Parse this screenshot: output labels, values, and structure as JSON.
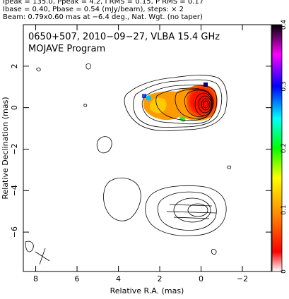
{
  "header": {
    "line1": "Ipeak = 135.0, Ppeak = 4.2, I RMS = 0.15, P RMS = 0.17",
    "line2": "Ibase = 0.40, Pbase = 0.54 (mJy/beam), steps: × 2",
    "line3": "Beam: 0.79x0.60 mas at −6.4 deg., Nat. Wgt. (no taper)"
  },
  "chart_data": {
    "type": "heatmap",
    "title": "0650+507, 2010−09−27, VLBA 15.4 GHz",
    "subtitle": "MOJAVE Program",
    "xlabel": "Relative R.A. (mas)",
    "ylabel": "Relative Declination (mas)",
    "xlim": [
      8.6,
      -3.4
    ],
    "ylim": [
      -7.9,
      4.0
    ],
    "xticks": [
      8,
      6,
      4,
      2,
      0,
      -2
    ],
    "yticks": [
      2,
      0,
      -2,
      -4,
      -6
    ],
    "grid": false,
    "colorbar": {
      "range": [
        0,
        0.4
      ],
      "ticks": [
        "0",
        "0.1",
        "0.2",
        "0.3",
        "0.4"
      ],
      "colors": [
        "#ffffff",
        "#ff0000",
        "#ff8000",
        "#ffff00",
        "#00ff00",
        "#00ffff",
        "#0000ff",
        "#ff00ff",
        "#000000"
      ]
    },
    "core_position": [
      0.0,
      0.0
    ],
    "beam_ellipse_center": [
      0.0,
      -5.0
    ]
  }
}
